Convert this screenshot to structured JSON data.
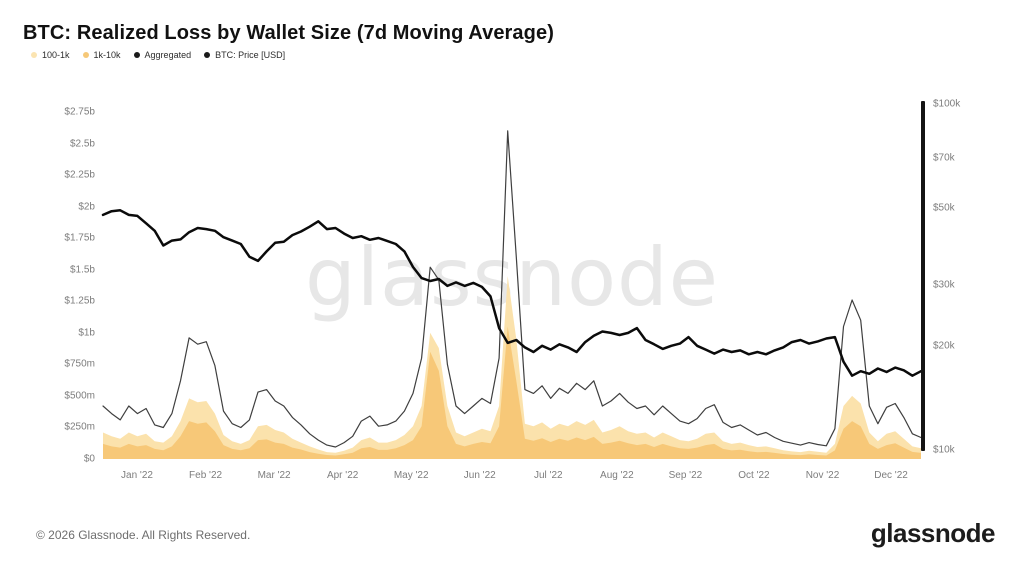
{
  "title": "BTC: Realized Loss by Wallet Size (7d Moving Average)",
  "watermark": "glassnode",
  "legend": [
    {
      "label": "100-1k",
      "color": "#fbe4b1"
    },
    {
      "label": "1k-10k",
      "color": "#f6c878"
    },
    {
      "label": "Aggregated",
      "color": "#1a1a1a"
    },
    {
      "label": "BTC: Price [USD]",
      "color": "#1a1a1a"
    }
  ],
  "footer": {
    "copyright": "© 2026 Glassnode. All Rights Reserved.",
    "logo": "glassnode"
  },
  "chart_data": {
    "type": "area",
    "title": "BTC: Realized Loss by Wallet Size (7d Moving Average)",
    "x_axis": {
      "labels": [
        "Jan '22",
        "Feb '22",
        "Mar '22",
        "Apr '22",
        "May '22",
        "Jun '22",
        "Jul '22",
        "Aug '22",
        "Sep '22",
        "Oct '22",
        "Nov '22",
        "Dec '22"
      ]
    },
    "left_axis": {
      "scale": "linear",
      "unit": "USD (realized loss)",
      "range_billions": [
        0,
        2.75
      ],
      "ticks": [
        {
          "label": "$0",
          "value": 0
        },
        {
          "label": "$250m",
          "value": 0.25
        },
        {
          "label": "$500m",
          "value": 0.5
        },
        {
          "label": "$750m",
          "value": 0.75
        },
        {
          "label": "$1b",
          "value": 1
        },
        {
          "label": "$1.25b",
          "value": 1.25
        },
        {
          "label": "$1.5b",
          "value": 1.5
        },
        {
          "label": "$1.75b",
          "value": 1.75
        },
        {
          "label": "$2b",
          "value": 2
        },
        {
          "label": "$2.25b",
          "value": 2.25
        },
        {
          "label": "$2.5b",
          "value": 2.5
        },
        {
          "label": "$2.75b",
          "value": 2.75
        }
      ]
    },
    "right_axis": {
      "scale": "log",
      "unit": "BTC price USD",
      "range_usd": [
        10000,
        100000
      ],
      "ticks": [
        {
          "label": "$10k",
          "value": 10
        },
        {
          "label": "$20k",
          "value": 20
        },
        {
          "label": "$30k",
          "value": 30
        },
        {
          "label": "$50k",
          "value": 50
        },
        {
          "label": "$70k",
          "value": 70
        },
        {
          "label": "$100k",
          "value": 100
        }
      ]
    },
    "series": [
      {
        "name": "100-1k",
        "render": "area",
        "axis": "left",
        "color": "#fbe2ac",
        "unit": "billion USD",
        "values": [
          0.21,
          0.18,
          0.16,
          0.21,
          0.18,
          0.2,
          0.14,
          0.13,
          0.18,
          0.3,
          0.48,
          0.45,
          0.46,
          0.36,
          0.19,
          0.14,
          0.12,
          0.15,
          0.26,
          0.27,
          0.23,
          0.21,
          0.16,
          0.13,
          0.1,
          0.075,
          0.055,
          0.05,
          0.065,
          0.09,
          0.15,
          0.17,
          0.13,
          0.13,
          0.15,
          0.19,
          0.26,
          0.42,
          1.0,
          0.88,
          0.42,
          0.21,
          0.18,
          0.21,
          0.24,
          0.22,
          0.42,
          1.45,
          0.95,
          0.28,
          0.26,
          0.29,
          0.24,
          0.28,
          0.26,
          0.3,
          0.27,
          0.31,
          0.21,
          0.23,
          0.26,
          0.22,
          0.2,
          0.21,
          0.17,
          0.21,
          0.18,
          0.15,
          0.14,
          0.16,
          0.2,
          0.21,
          0.14,
          0.12,
          0.13,
          0.11,
          0.095,
          0.1,
          0.085,
          0.07,
          0.06,
          0.055,
          0.065,
          0.057,
          0.05,
          0.12,
          0.42,
          0.5,
          0.44,
          0.21,
          0.14,
          0.2,
          0.22,
          0.16,
          0.1,
          0.085
        ]
      },
      {
        "name": "1k-10k",
        "render": "area",
        "axis": "left",
        "color": "#f7c878",
        "unit": "billion USD",
        "values": [
          0.12,
          0.1,
          0.09,
          0.12,
          0.1,
          0.11,
          0.08,
          0.07,
          0.1,
          0.18,
          0.3,
          0.28,
          0.29,
          0.22,
          0.11,
          0.08,
          0.07,
          0.085,
          0.15,
          0.155,
          0.13,
          0.12,
          0.09,
          0.075,
          0.055,
          0.042,
          0.032,
          0.028,
          0.037,
          0.05,
          0.085,
          0.095,
          0.072,
          0.072,
          0.085,
          0.11,
          0.15,
          0.26,
          0.85,
          0.7,
          0.26,
          0.12,
          0.1,
          0.12,
          0.135,
          0.125,
          0.26,
          1.05,
          0.62,
          0.16,
          0.145,
          0.165,
          0.135,
          0.16,
          0.145,
          0.17,
          0.15,
          0.175,
          0.12,
          0.13,
          0.145,
          0.125,
          0.11,
          0.12,
          0.095,
          0.12,
          0.1,
          0.085,
          0.08,
          0.09,
          0.11,
          0.12,
          0.08,
          0.068,
          0.073,
          0.062,
          0.053,
          0.056,
          0.048,
          0.04,
          0.034,
          0.031,
          0.037,
          0.032,
          0.028,
          0.068,
          0.24,
          0.3,
          0.26,
          0.12,
          0.08,
          0.11,
          0.125,
          0.09,
          0.056,
          0.048
        ]
      },
      {
        "name": "Aggregated",
        "render": "line",
        "axis": "left",
        "color": "#3f3f3f",
        "unit": "billion USD",
        "values": [
          0.42,
          0.36,
          0.31,
          0.42,
          0.36,
          0.4,
          0.27,
          0.25,
          0.36,
          0.62,
          0.96,
          0.91,
          0.93,
          0.74,
          0.38,
          0.28,
          0.25,
          0.31,
          0.53,
          0.55,
          0.46,
          0.42,
          0.33,
          0.27,
          0.2,
          0.15,
          0.11,
          0.095,
          0.13,
          0.18,
          0.3,
          0.34,
          0.26,
          0.27,
          0.3,
          0.38,
          0.52,
          0.8,
          1.52,
          1.42,
          0.75,
          0.42,
          0.36,
          0.42,
          0.48,
          0.44,
          0.8,
          2.6,
          1.6,
          0.55,
          0.52,
          0.58,
          0.48,
          0.56,
          0.52,
          0.6,
          0.55,
          0.62,
          0.42,
          0.46,
          0.52,
          0.45,
          0.4,
          0.42,
          0.35,
          0.42,
          0.36,
          0.3,
          0.28,
          0.32,
          0.4,
          0.43,
          0.29,
          0.25,
          0.27,
          0.23,
          0.19,
          0.21,
          0.17,
          0.14,
          0.125,
          0.11,
          0.13,
          0.115,
          0.105,
          0.24,
          1.05,
          1.26,
          1.1,
          0.42,
          0.28,
          0.41,
          0.44,
          0.33,
          0.2,
          0.17
        ]
      },
      {
        "name": "BTC: Price [USD]",
        "render": "line",
        "axis": "right",
        "color": "#0b0b0b",
        "unit": "thousand USD",
        "values": [
          47.8,
          49.0,
          49.3,
          47.8,
          47.5,
          45.2,
          43.0,
          39.0,
          40.3,
          40.6,
          42.6,
          43.8,
          43.5,
          43.0,
          41.2,
          40.3,
          39.4,
          36.2,
          35.2,
          37.5,
          39.7,
          40.0,
          41.8,
          42.8,
          44.2,
          45.8,
          43.5,
          43.8,
          42.2,
          41.0,
          41.5,
          40.5,
          41.0,
          40.2,
          39.4,
          37.5,
          33.8,
          31.4,
          30.8,
          31.2,
          29.8,
          30.5,
          29.8,
          30.4,
          29.6,
          27.8,
          22.5,
          20.4,
          20.8,
          19.8,
          19.2,
          20.0,
          19.5,
          20.2,
          19.8,
          19.2,
          20.5,
          21.4,
          22.0,
          21.8,
          21.5,
          21.8,
          22.5,
          20.8,
          20.2,
          19.6,
          20.0,
          20.3,
          21.2,
          20.0,
          19.5,
          19.0,
          19.5,
          19.2,
          19.4,
          18.9,
          19.2,
          18.9,
          19.4,
          19.8,
          20.5,
          20.8,
          20.3,
          20.6,
          21.0,
          21.2,
          18.0,
          16.4,
          16.9,
          16.6,
          17.2,
          16.8,
          17.3,
          17.0,
          16.4,
          16.9
        ]
      }
    ]
  }
}
